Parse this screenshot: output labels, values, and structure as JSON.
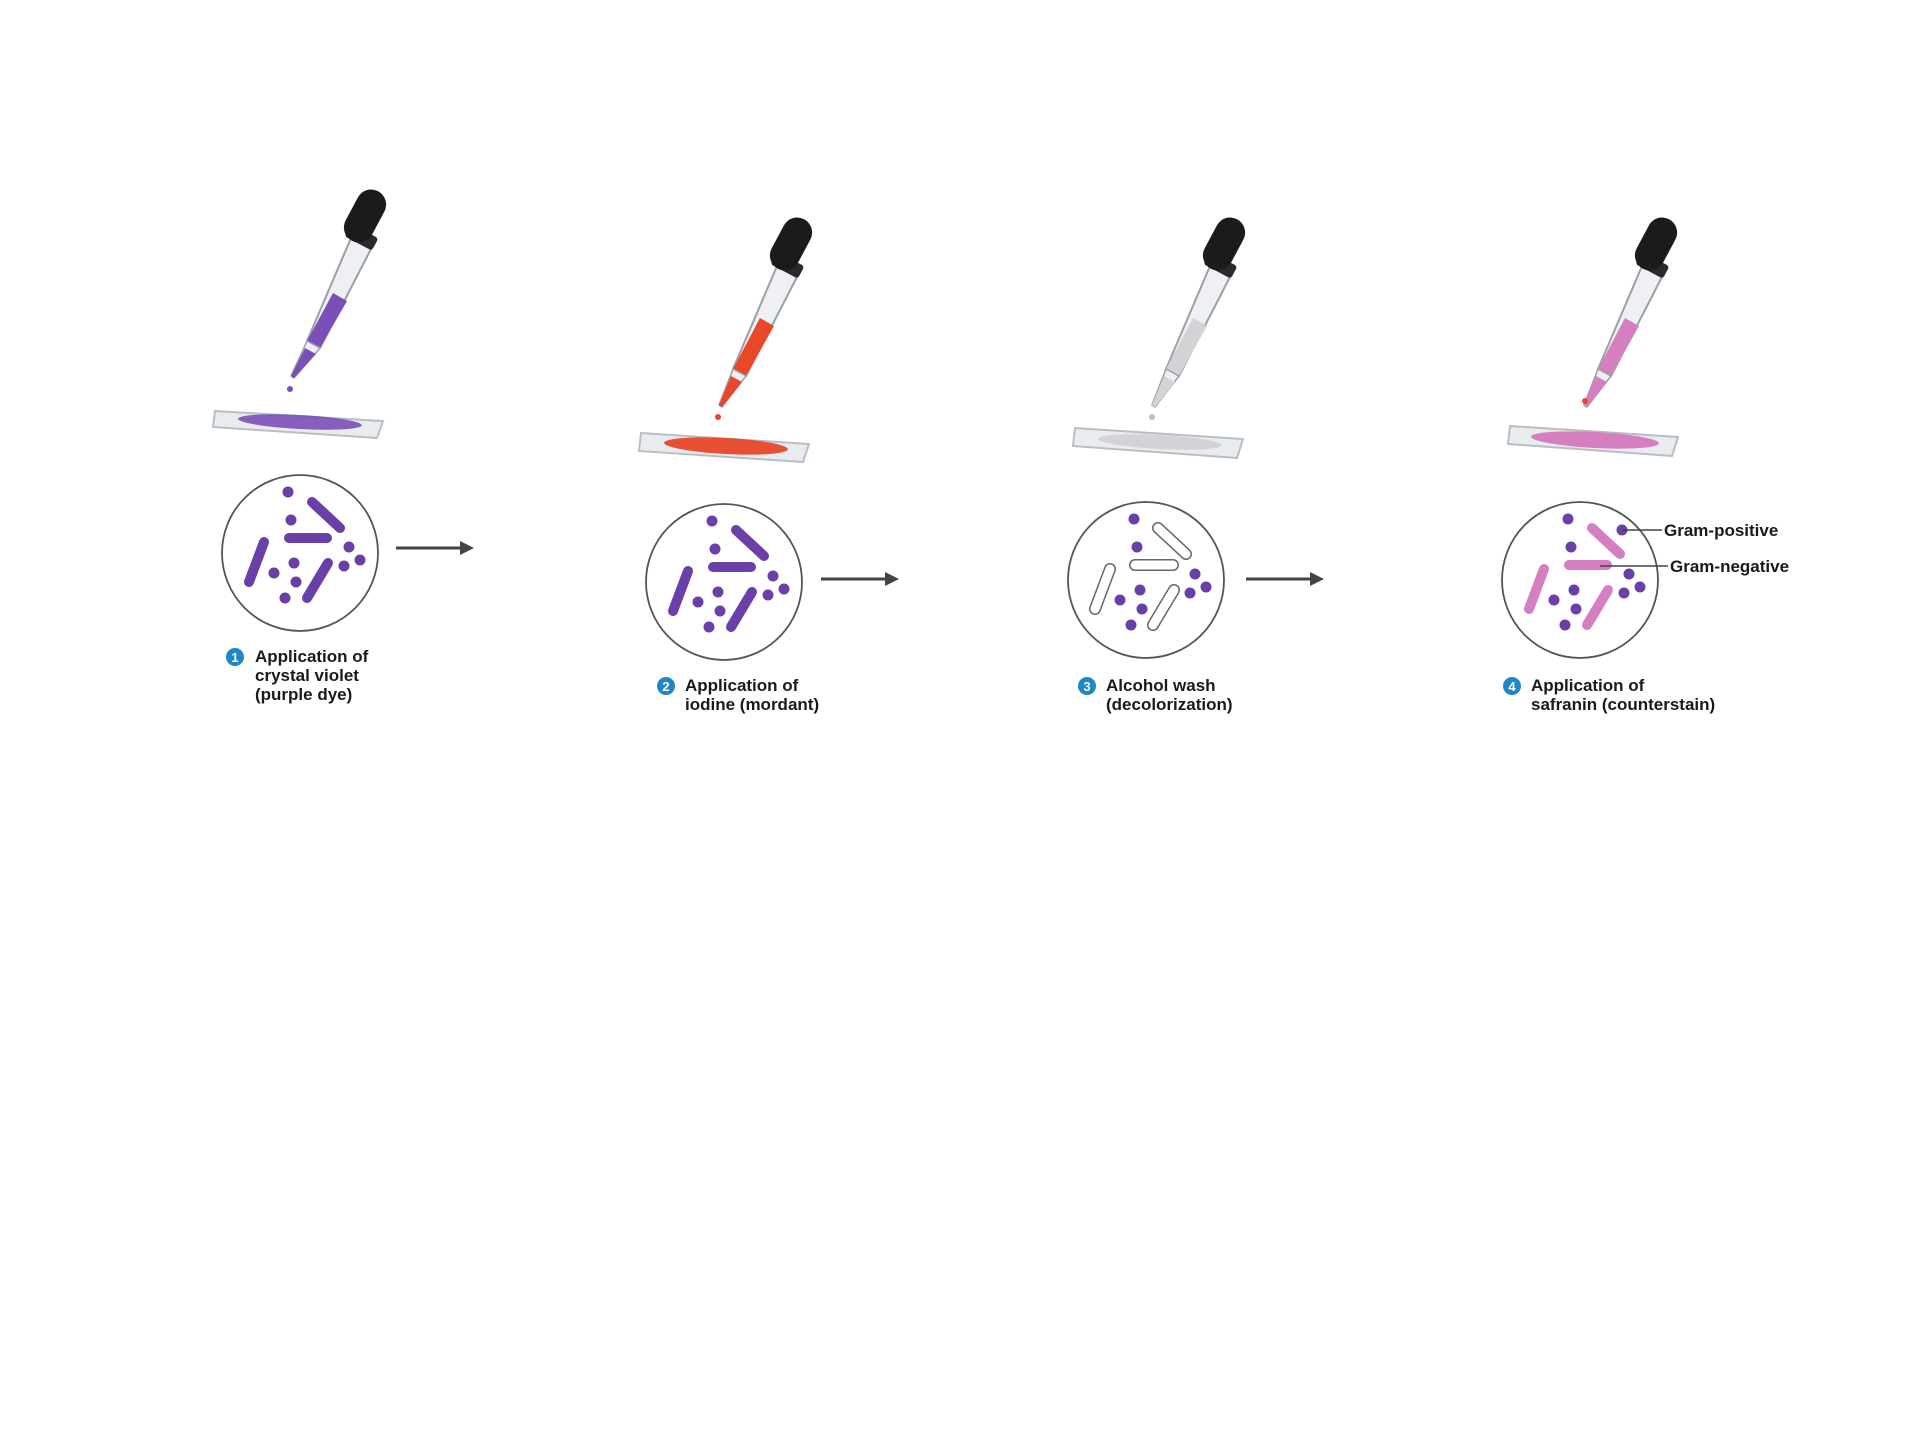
{
  "colors": {
    "crystal_violet": "#7a4fb8",
    "iodine": "#e8472a",
    "alcohol": "#d3d3d6",
    "safranin": "#d57fc0",
    "cell_purple": "#6a3fa8",
    "cell_pink": "#d57fc0",
    "step_number_badge": "#1f86c8",
    "arrow": "#444444",
    "dropper_bulb": "#1b1b1b"
  },
  "steps": [
    {
      "number": "1",
      "label_lines": [
        "Application of",
        "crystal violet",
        "(purple dye)"
      ],
      "dye": "crystal_violet"
    },
    {
      "number": "2",
      "label_lines": [
        "Application of",
        "iodine (mordant)"
      ],
      "dye": "iodine"
    },
    {
      "number": "3",
      "label_lines": [
        "Alcohol wash",
        "(decolorization)"
      ],
      "dye": "alcohol"
    },
    {
      "number": "4",
      "label_lines": [
        "Application of",
        "safranin (counterstain)"
      ],
      "dye": "safranin"
    }
  ],
  "legend": {
    "gram_positive": "Gram-positive",
    "gram_negative": "Gram-negative"
  }
}
